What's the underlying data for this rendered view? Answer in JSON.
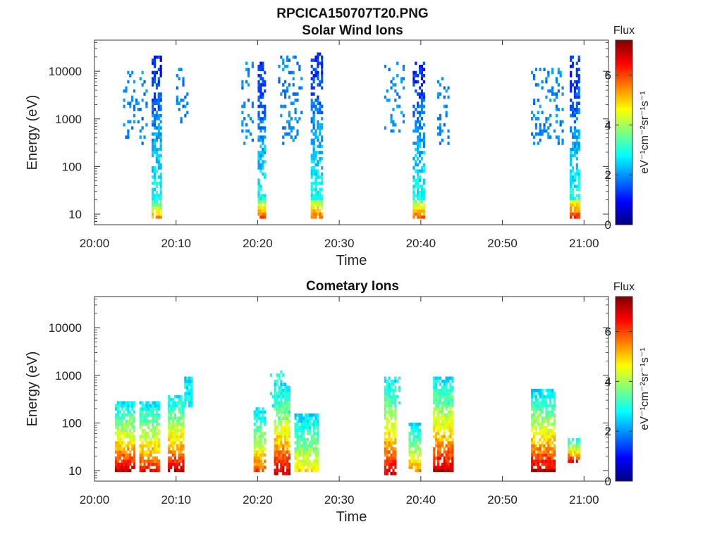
{
  "figure": {
    "title": "RPCICA150707T20.PNG"
  },
  "colormap": [
    "#00007f",
    "#0000ff",
    "#007fff",
    "#00ffff",
    "#7fff7f",
    "#ffff00",
    "#ff7f00",
    "#ff0000",
    "#7f0000"
  ],
  "chart_data": [
    {
      "type": "heatmap",
      "title": "Solar Wind Ions",
      "xlabel": "Time",
      "ylabel": "Energy (eV)",
      "x_ticks": [
        "20:00",
        "20:10",
        "20:20",
        "20:30",
        "20:40",
        "20:50",
        "21:00"
      ],
      "x_range_minutes": [
        0,
        63
      ],
      "y_scale": "log",
      "y_ticks": [
        {
          "value": 10,
          "label": "10"
        },
        {
          "value": 100,
          "label": "100"
        },
        {
          "value": 1000,
          "label": "1000"
        },
        {
          "value": 10000,
          "label": "10000"
        }
      ],
      "y_range": [
        6,
        45000
      ],
      "colorbar": {
        "title": "Flux",
        "label": "eV⁻¹cm⁻²sr⁻¹s⁻¹",
        "range": [
          0,
          7.4
        ],
        "ticks": [
          "0",
          "2",
          "4",
          "6"
        ]
      },
      "bursts": [
        {
          "t": [
            7,
            8.2
          ],
          "e": [
            8,
            20000
          ],
          "peak": 5.5
        },
        {
          "t": [
            19.8,
            20.8
          ],
          "e": [
            8,
            15000
          ],
          "peak": 6.0
        },
        {
          "t": [
            26.3,
            27.8
          ],
          "e": [
            8,
            25000
          ],
          "peak": 6.0
        },
        {
          "t": [
            39,
            40.5
          ],
          "e": [
            8,
            15000
          ],
          "peak": 6.0
        },
        {
          "t": [
            58.2,
            59.5
          ],
          "e": [
            8,
            20000
          ],
          "peak": 6.5
        }
      ],
      "high_energy_scatter": [
        {
          "t": [
            3.5,
            6.5
          ],
          "e": [
            300,
            12000
          ]
        },
        {
          "t": [
            10,
            11.5
          ],
          "e": [
            700,
            12000
          ]
        },
        {
          "t": [
            18,
            19.5
          ],
          "e": [
            300,
            15000
          ]
        },
        {
          "t": [
            22.5,
            25.5
          ],
          "e": [
            300,
            20000
          ]
        },
        {
          "t": [
            35.5,
            38
          ],
          "e": [
            500,
            15000
          ]
        },
        {
          "t": [
            42,
            43.5
          ],
          "e": [
            300,
            8000
          ]
        },
        {
          "t": [
            53.5,
            57.5
          ],
          "e": [
            300,
            12000
          ]
        }
      ]
    },
    {
      "type": "heatmap",
      "title": "Cometary Ions",
      "xlabel": "Time",
      "ylabel": "Energy (eV)",
      "x_ticks": [
        "20:00",
        "20:10",
        "20:20",
        "20:30",
        "20:40",
        "20:50",
        "21:00"
      ],
      "x_range_minutes": [
        0,
        63
      ],
      "y_scale": "log",
      "y_ticks": [
        {
          "value": 10,
          "label": "10"
        },
        {
          "value": 100,
          "label": "100"
        },
        {
          "value": 1000,
          "label": "1000"
        },
        {
          "value": 10000,
          "label": "10000"
        }
      ],
      "y_range": [
        6,
        45000
      ],
      "colorbar": {
        "title": "Flux",
        "label": "eV⁻¹cm⁻²sr⁻¹s⁻¹",
        "range": [
          0,
          7.4
        ],
        "ticks": [
          "0",
          "2",
          "4",
          "6"
        ]
      },
      "bursts": [
        {
          "t": [
            2.5,
            5
          ],
          "e": [
            10,
            300
          ],
          "peak": 7.0
        },
        {
          "t": [
            5.5,
            8
          ],
          "e": [
            10,
            300
          ],
          "peak": 6.5
        },
        {
          "t": [
            9,
            11
          ],
          "e": [
            10,
            400
          ],
          "peak": 7.0
        },
        {
          "t": [
            11,
            12
          ],
          "e": [
            200,
            1000
          ],
          "peak": 3.0
        },
        {
          "t": [
            19.3,
            20.8
          ],
          "e": [
            10,
            200
          ],
          "peak": 6.0
        },
        {
          "t": [
            22,
            24
          ],
          "e": [
            8,
            700
          ],
          "peak": 7.0
        },
        {
          "t": [
            24.5,
            27.5
          ],
          "e": [
            10,
            150
          ],
          "peak": 5.0
        },
        {
          "t": [
            35.5,
            37
          ],
          "e": [
            8,
            1000
          ],
          "peak": 7.0
        },
        {
          "t": [
            38.5,
            40
          ],
          "e": [
            10,
            100
          ],
          "peak": 5.5
        },
        {
          "t": [
            41.5,
            44
          ],
          "e": [
            10,
            1000
          ],
          "peak": 7.0
        },
        {
          "t": [
            53.5,
            56.5
          ],
          "e": [
            10,
            500
          ],
          "peak": 7.0
        },
        {
          "t": [
            58,
            59.5
          ],
          "e": [
            15,
            50
          ],
          "peak": 7.0
        }
      ],
      "high_energy_scatter": [
        {
          "t": [
            21.5,
            24
          ],
          "e": [
            100,
            1200
          ]
        },
        {
          "t": [
            36,
            37.5
          ],
          "e": [
            200,
            1000
          ]
        },
        {
          "t": [
            42.5,
            44
          ],
          "e": [
            200,
            1000
          ]
        },
        {
          "t": [
            11,
            12
          ],
          "e": [
            200,
            1000
          ]
        }
      ]
    }
  ]
}
